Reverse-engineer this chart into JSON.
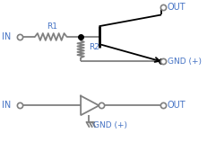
{
  "bg_color": "#ffffff",
  "line_color": "#808080",
  "text_color": "#4472c4",
  "black": "#000000",
  "fig_width": 2.32,
  "fig_height": 1.58,
  "dpi": 100,
  "top": {
    "in_label": "IN",
    "r1_label": "R1",
    "r2_label": "R2",
    "out_label": "OUT",
    "gnd_label": "GND (+)"
  },
  "bottom": {
    "in_label": "IN",
    "out_label": "OUT",
    "gnd_label": "GND (+)"
  }
}
